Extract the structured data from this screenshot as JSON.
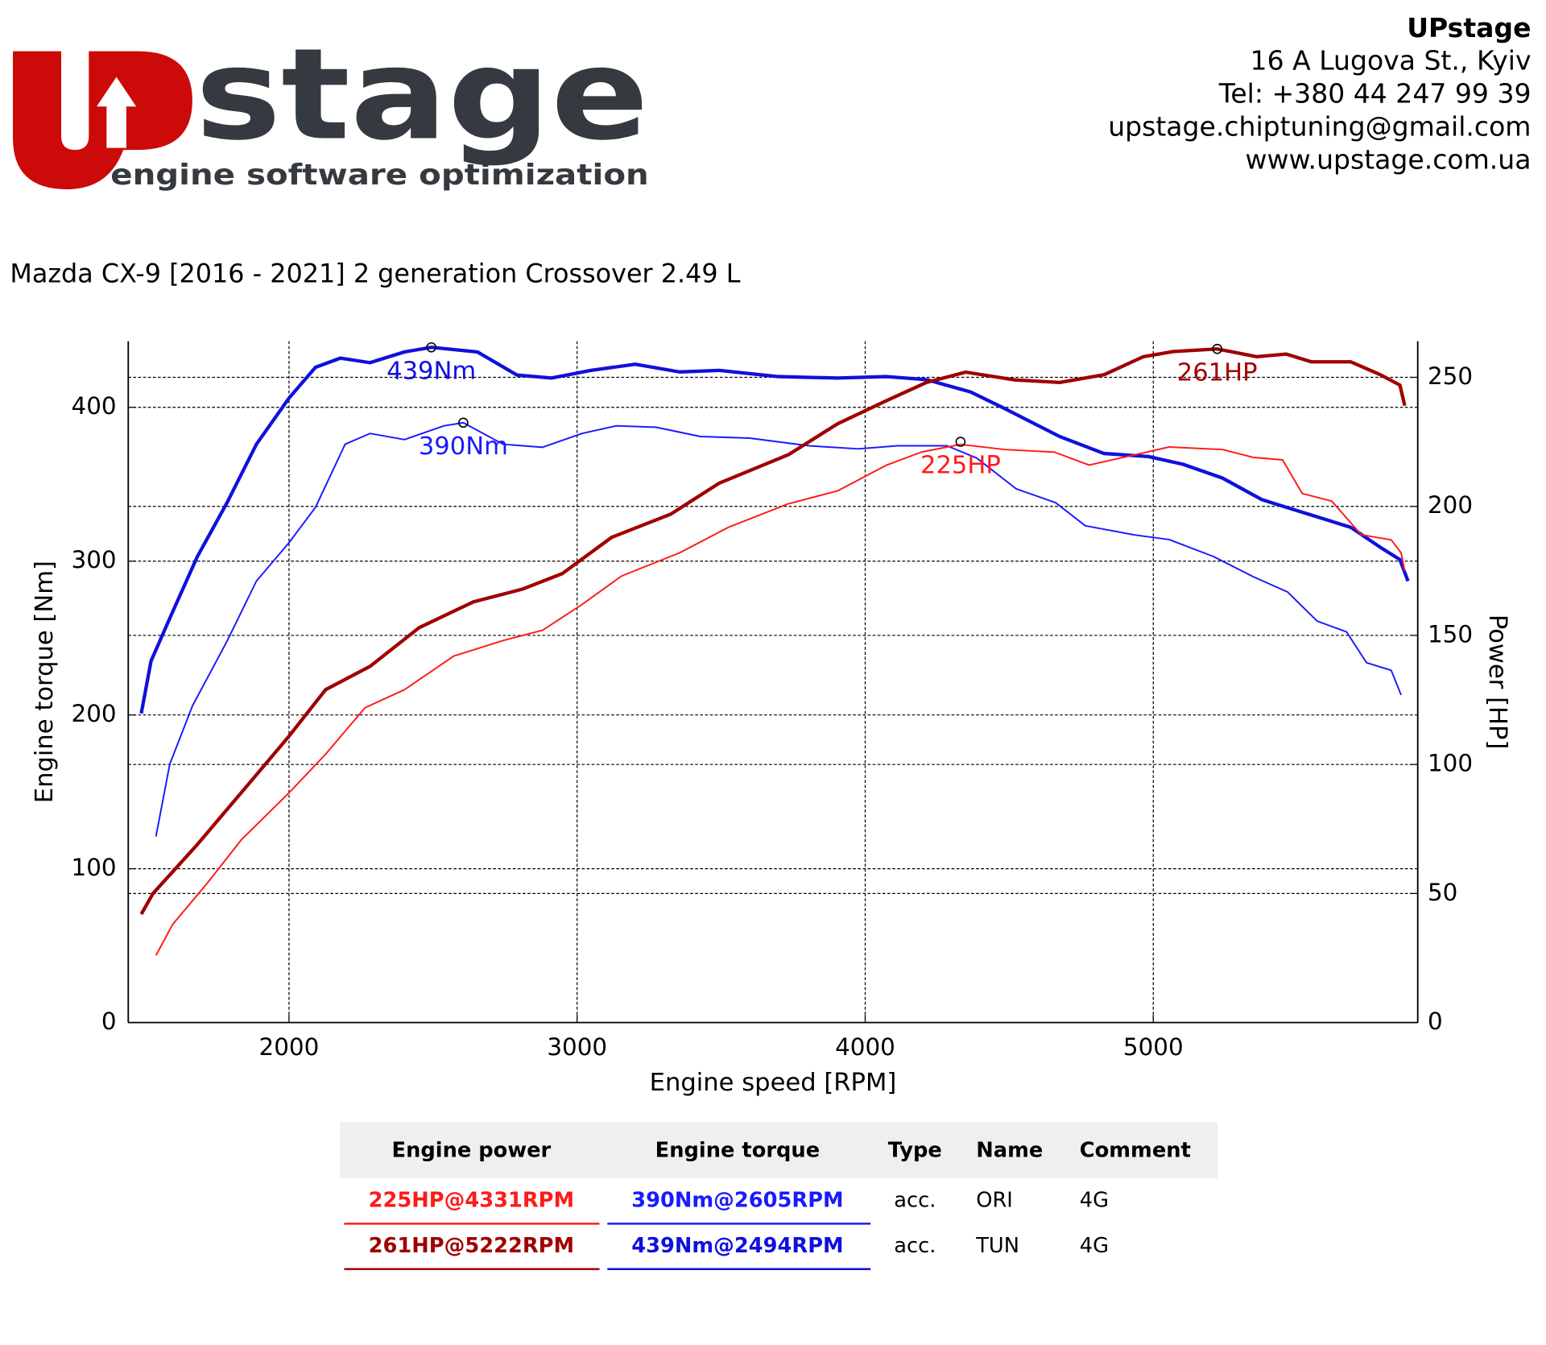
{
  "header": {
    "company": "UPstage",
    "lines": [
      "16 A Lugova St., Kyiv",
      "Tel: +380 44 247 99 39",
      "upstage.chiptuning@gmail.com",
      "www.upstage.com.ua"
    ]
  },
  "logo": {
    "word": "stage",
    "tagline": "engine software optimization"
  },
  "chart_data": {
    "type": "line",
    "title": "Mazda CX-9 [2016 - 2021] 2 generation Crossover 2.49 L",
    "xlabel": "Engine speed [RPM]",
    "ylabel": "Engine torque [Nm]",
    "y2label": "Power [HP]",
    "xlim": [
      1442,
      5918
    ],
    "xticks": [
      2000,
      3000,
      4000,
      5000
    ],
    "ylim": [
      0,
      443
    ],
    "yticks": [
      0,
      100,
      200,
      300,
      400
    ],
    "y2lim": [
      0,
      264
    ],
    "y2ticks": [
      0,
      50,
      100,
      150,
      200,
      250
    ],
    "grid": true,
    "series": [
      {
        "name": "TUN torque",
        "color": "#1010dd",
        "width": 3.5,
        "x": [
          1487,
          1521,
          1596,
          1682,
          1785,
          1887,
          2000,
          2092,
          2178,
          2281,
          2401,
          2494,
          2654,
          2791,
          2911,
          3048,
          3202,
          3356,
          3493,
          3698,
          3904,
          4075,
          4212,
          4366,
          4486,
          4675,
          4829,
          4983,
          5103,
          5240,
          5377,
          5548,
          5685,
          5788,
          5856,
          5884
        ],
        "values": [
          201,
          235,
          267,
          303,
          338,
          376,
          406,
          426,
          432,
          429,
          436,
          439,
          436,
          421,
          419,
          424,
          428,
          423,
          424,
          420,
          419,
          420,
          418,
          410,
          399,
          381,
          370,
          368,
          363,
          354,
          340,
          330,
          322,
          309,
          301,
          287
        ]
      },
      {
        "name": "ORI torque",
        "color": "#1a1aff",
        "width": 1.6,
        "x": [
          1538,
          1586,
          1665,
          1785,
          1887,
          2000,
          2092,
          2195,
          2281,
          2401,
          2538,
          2605,
          2743,
          2880,
          3017,
          3137,
          3274,
          3428,
          3599,
          3805,
          3976,
          4113,
          4284,
          4387,
          4524,
          4661,
          4764,
          4935,
          5055,
          5209,
          5346,
          5466,
          5569,
          5671,
          5740,
          5826,
          5860
        ],
        "values": [
          121,
          168,
          206,
          248,
          287,
          312,
          335,
          376,
          383,
          379,
          388,
          390,
          376,
          374,
          383,
          388,
          387,
          381,
          380,
          375,
          373,
          375,
          375,
          367,
          347,
          338,
          323,
          317,
          314,
          303,
          290,
          280,
          261,
          254,
          234,
          229,
          213
        ]
      },
      {
        "name": "ORI power",
        "color": "#ff1a1a",
        "width": 1.6,
        "axis": "y2",
        "x": [
          1538,
          1596,
          1716,
          1836,
          2000,
          2127,
          2264,
          2401,
          2572,
          2743,
          2880,
          3017,
          3154,
          3356,
          3527,
          3733,
          3904,
          4075,
          4195,
          4331,
          4486,
          4657,
          4777,
          4897,
          5055,
          5240,
          5346,
          5449,
          5517,
          5620,
          5722,
          5826,
          5860,
          5873
        ],
        "values": [
          26,
          38,
          54,
          71,
          89,
          104,
          122,
          129,
          142,
          148,
          152,
          162,
          173,
          182,
          192,
          201,
          206,
          216,
          221,
          224,
          222,
          221,
          216,
          219,
          223,
          222,
          219,
          218,
          205,
          202,
          189,
          187,
          182,
          175
        ]
      },
      {
        "name": "TUN power",
        "color": "#a00000",
        "width": 3.5,
        "axis": "y2",
        "x": [
          1487,
          1528,
          1682,
          1887,
          2000,
          2127,
          2281,
          2452,
          2640,
          2812,
          2949,
          3120,
          3325,
          3493,
          3733,
          3904,
          4075,
          4212,
          4349,
          4520,
          4675,
          4829,
          4966,
          5069,
          5222,
          5359,
          5462,
          5548,
          5685,
          5788,
          5856,
          5873
        ],
        "values": [
          42,
          50,
          69,
          96,
          111,
          129,
          138,
          153,
          163,
          168,
          174,
          188,
          197,
          209,
          220,
          232,
          241,
          248,
          252,
          249,
          248,
          251,
          258,
          260,
          261,
          258,
          259,
          256,
          256,
          251,
          247,
          239
        ]
      }
    ],
    "annotations": [
      {
        "text": "439Nm",
        "x": 2494,
        "y": 439,
        "color": "#1010dd"
      },
      {
        "text": "390Nm",
        "x": 2605,
        "y": 390,
        "color": "#1a1aff"
      },
      {
        "text": "225HP",
        "x": 4331,
        "y": 225,
        "color": "#ff1a1a",
        "axis": "y2"
      },
      {
        "text": "261HP",
        "x": 5222,
        "y": 261,
        "color": "#a00000",
        "axis": "y2"
      }
    ]
  },
  "table": {
    "columns": [
      "Engine power",
      "Engine torque",
      "Type",
      "Name",
      "Comment"
    ],
    "rows": [
      [
        "225HP@4331RPM",
        "390Nm@2605RPM",
        "acc.",
        "ORI",
        "4G"
      ],
      [
        "261HP@5222RPM",
        "439Nm@2494RPM",
        "acc.",
        "TUN",
        "4G"
      ]
    ],
    "row_colors": [
      [
        "#ff1a1a",
        "#1a1aff"
      ],
      [
        "#a00000",
        "#1010dd"
      ]
    ]
  }
}
